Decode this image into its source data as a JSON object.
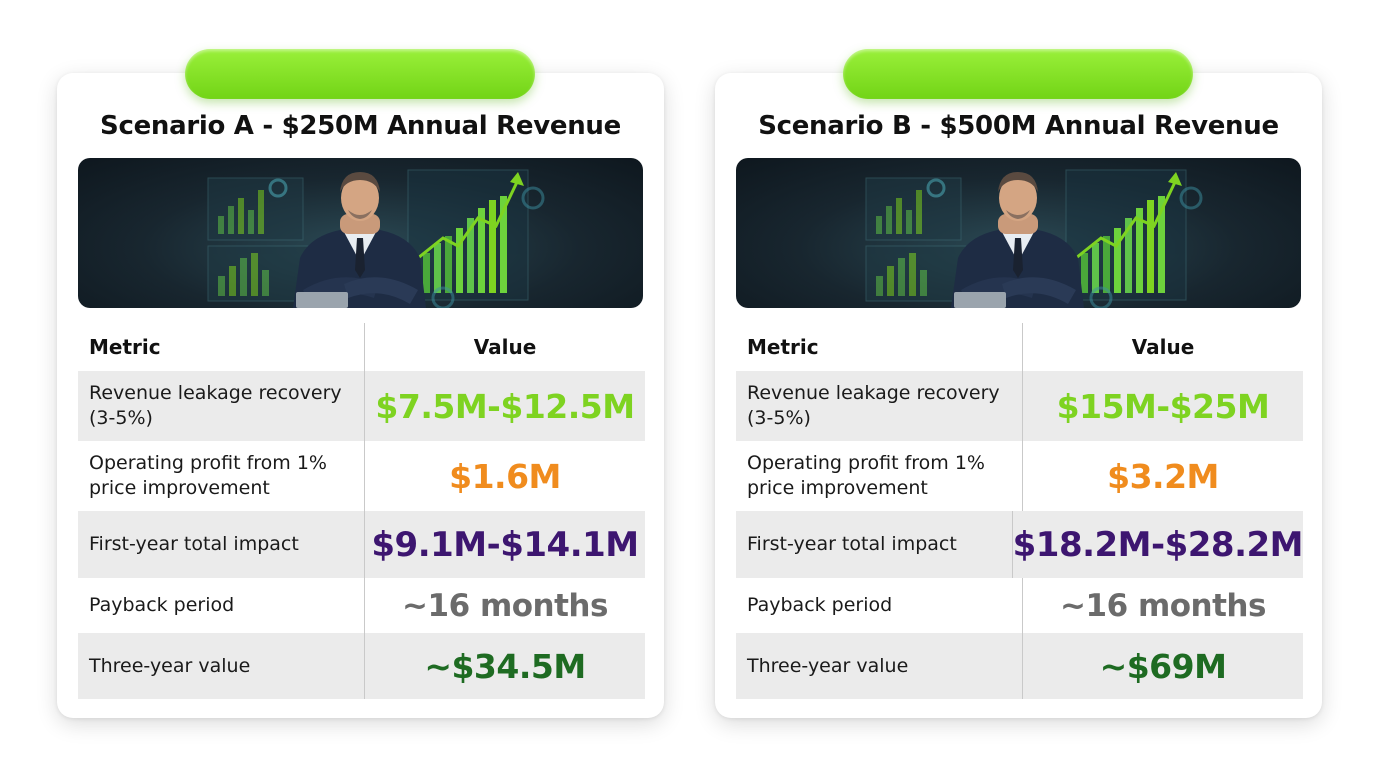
{
  "colors": {
    "accent_green": "#7ed321",
    "accent_orange": "#f08c1e",
    "accent_purple": "#3d1670",
    "muted_gray": "#6b6b6b",
    "dark_green": "#1e6b22",
    "pill_green": "#8be52a"
  },
  "hero_image": {
    "icon": "businessman-with-growth-charts-image"
  },
  "table_header": {
    "metric": "Metric",
    "value": "Value"
  },
  "metrics": {
    "leakage": "Revenue leakage recovery (3-5%)",
    "profit": "Operating profit from 1% price improvement",
    "first_year": "First-year total impact",
    "payback": "Payback period",
    "three_year": "Three-year value"
  },
  "scenario_a": {
    "title": "Scenario A - $250M Annual Revenue",
    "leakage": "$7.5M-$12.5M",
    "profit": "$1.6M",
    "first_year": "$9.1M-$14.1M",
    "payback": "~16 months",
    "three_year": "~$34.5M"
  },
  "scenario_b": {
    "title": "Scenario B - $500M Annual Revenue",
    "leakage": "$15M-$25M",
    "profit": "$3.2M",
    "first_year": "$18.2M-$28.2M",
    "payback": "~16 months",
    "three_year": "~$69M"
  }
}
